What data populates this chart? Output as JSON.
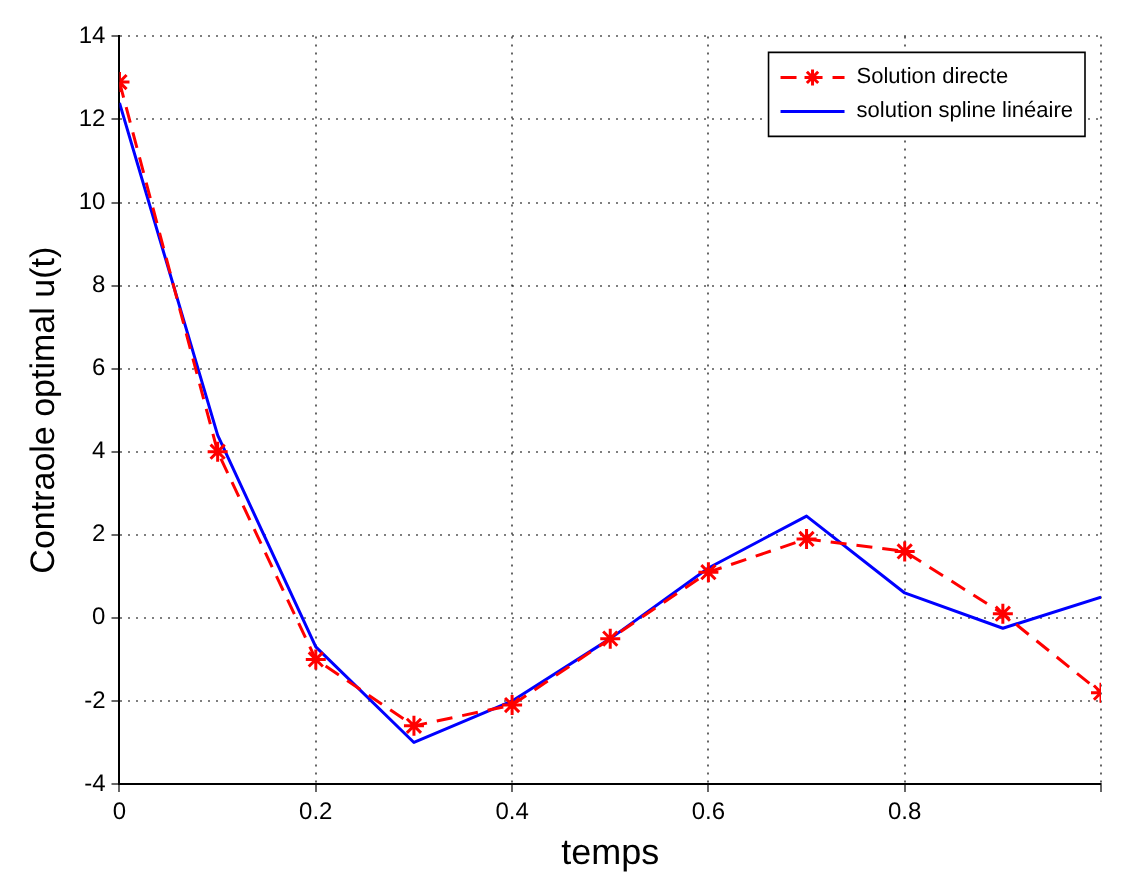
{
  "chart_data": {
    "type": "line",
    "xlabel": "temps",
    "ylabel": "Contraole optimal u(t)",
    "x": [
      0,
      0.1,
      0.2,
      0.3,
      0.4,
      0.5,
      0.6,
      0.7,
      0.8,
      0.9,
      1
    ],
    "series": [
      {
        "name": "Solution directe",
        "color": "#ff0000",
        "marker": "cross",
        "line_style": "dashed",
        "values": [
          12.9,
          4.0,
          -1.0,
          -2.6,
          -2.1,
          -0.5,
          1.1,
          1.9,
          1.6,
          0.1,
          -1.8
        ]
      },
      {
        "name": "solution spline linéaire",
        "color": "#0000ff",
        "marker": "none",
        "line_style": "solid",
        "values": [
          12.4,
          4.4,
          -0.7,
          -3.0,
          -2.0,
          -0.5,
          1.2,
          2.45,
          0.6,
          -0.25,
          0.5
        ]
      }
    ],
    "xlim": [
      0,
      1
    ],
    "xticks": [
      0,
      0.2,
      0.4,
      0.6,
      0.8,
      {
        "value": 1,
        "label": null
      }
    ],
    "ylim": [
      -4,
      14
    ],
    "yticks": [
      -4,
      -2,
      0,
      2,
      4,
      6,
      8,
      10,
      12,
      14
    ],
    "grid": true,
    "legend": "top right"
  }
}
